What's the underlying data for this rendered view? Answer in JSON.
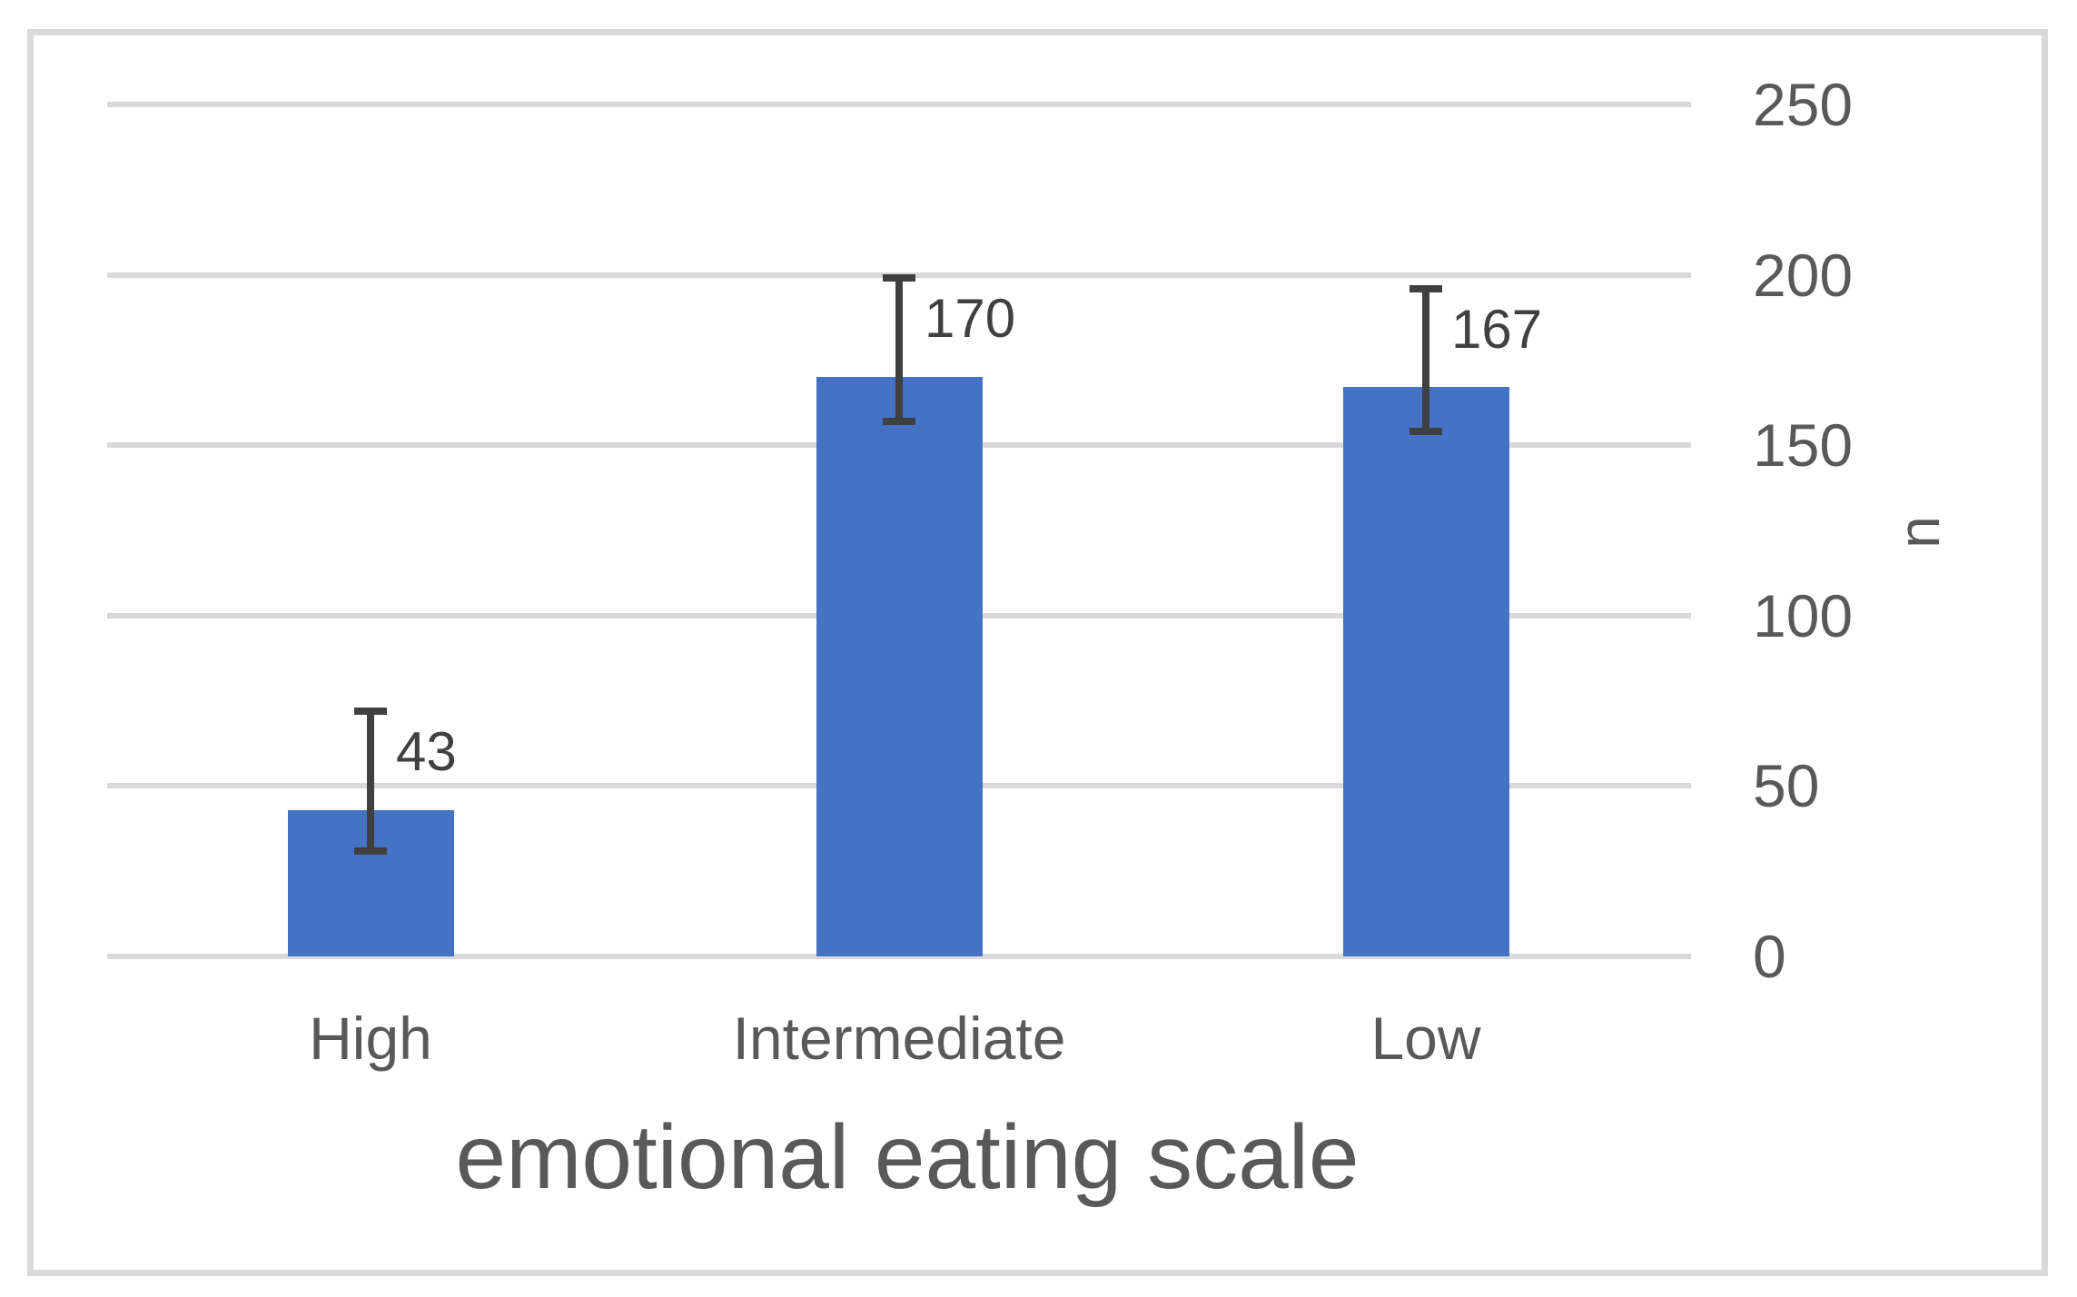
{
  "chart_data": {
    "type": "bar",
    "title": "",
    "xlabel": "emotional eating scale",
    "ylabel": "n",
    "categories": [
      "High",
      "Intermediate",
      "Low"
    ],
    "values": [
      43,
      170,
      167
    ],
    "data_labels": [
      "43",
      "170",
      "167"
    ],
    "error_plus": [
      29,
      29,
      29
    ],
    "error_minus": [
      12,
      13,
      13
    ],
    "yticks": [
      0,
      50,
      100,
      150,
      200,
      250
    ],
    "ylim": [
      0,
      250
    ],
    "y_axis_side": "right",
    "grid": true,
    "legend": false,
    "colors": {
      "bar": "#4472C4",
      "error_bar": "#404040",
      "data_label": "#404040",
      "tick_label": "#595959",
      "axis_title": "#595959",
      "gridline": "#D9D9D9",
      "frame": "#D9D9D9",
      "background": "#FFFFFF"
    }
  }
}
